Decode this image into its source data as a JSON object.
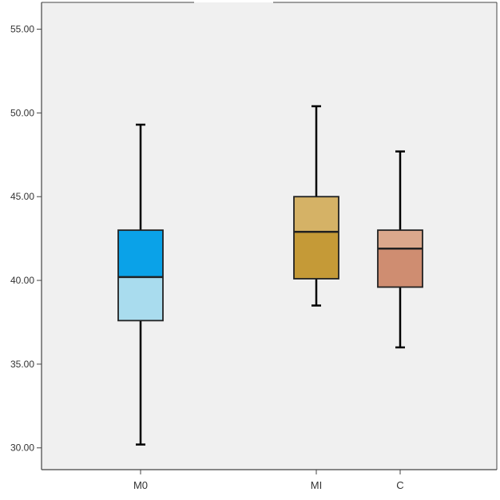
{
  "chart_data": {
    "type": "boxplot",
    "title": "",
    "xlabel": "",
    "ylabel": "",
    "ylim": [
      28.7,
      56.6
    ],
    "y_ticks": [
      30,
      35,
      40,
      45,
      50,
      55
    ],
    "y_tick_labels": [
      "30.00",
      "35.00",
      "40.00",
      "45.00",
      "50.00",
      "55.00"
    ],
    "grid": false,
    "legend": "none",
    "categories": [
      "M0",
      "MI",
      "C"
    ],
    "boxes": [
      {
        "category": "M0",
        "min": 30.2,
        "q1": 37.6,
        "median": 40.2,
        "q3": 43.0,
        "max": 49.3,
        "upper_color": "#0aa2e8",
        "lower_color": "#a9dcee"
      },
      {
        "category": "MI",
        "min": 38.5,
        "q1": 40.1,
        "median": 42.9,
        "q3": 45.0,
        "max": 50.4,
        "upper_color": "#d5b266",
        "lower_color": "#c59a37"
      },
      {
        "category": "C",
        "min": 36.0,
        "q1": 39.6,
        "median": 41.9,
        "q3": 43.0,
        "max": 47.7,
        "upper_color": "#dba88c",
        "lower_color": "#cf8d71"
      }
    ],
    "colors": {
      "plot_background": "#f0f0f0",
      "axis": "#444444",
      "box_stroke": "#222222",
      "whisker": "#000000",
      "tick_label": "#333333"
    }
  }
}
